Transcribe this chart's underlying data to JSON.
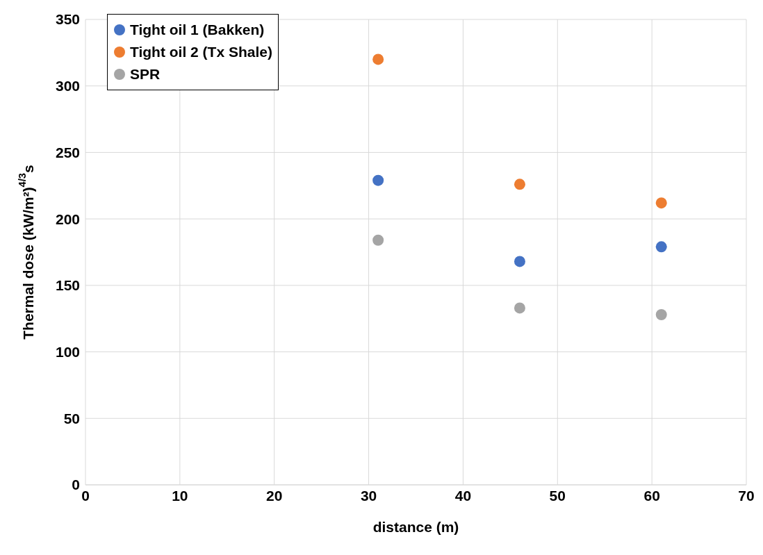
{
  "chart_data": {
    "type": "scatter",
    "xlabel": "distance (m)",
    "ylabel": "Thermal dose (kW/m²)$^{4/3}$s",
    "x": [
      31,
      46,
      61
    ],
    "series": [
      {
        "name": "Tight oil 1 (Bakken)",
        "color": "#4472c4",
        "values": [
          229,
          168,
          179
        ]
      },
      {
        "name": "Tight oil 2 (Tx Shale)",
        "color": "#ed7d31",
        "values": [
          320,
          226,
          212
        ]
      },
      {
        "name": "SPR",
        "color": "#a5a5a5",
        "values": [
          184,
          133,
          128
        ]
      }
    ],
    "xlim": [
      0,
      70
    ],
    "xticks": [
      0,
      10,
      20,
      30,
      40,
      50,
      60,
      70
    ],
    "ylim": [
      0,
      350
    ],
    "yticks": [
      0,
      50,
      100,
      150,
      200,
      250,
      300,
      350
    ],
    "grid": true,
    "legend": "top left",
    "marker": "circle"
  }
}
